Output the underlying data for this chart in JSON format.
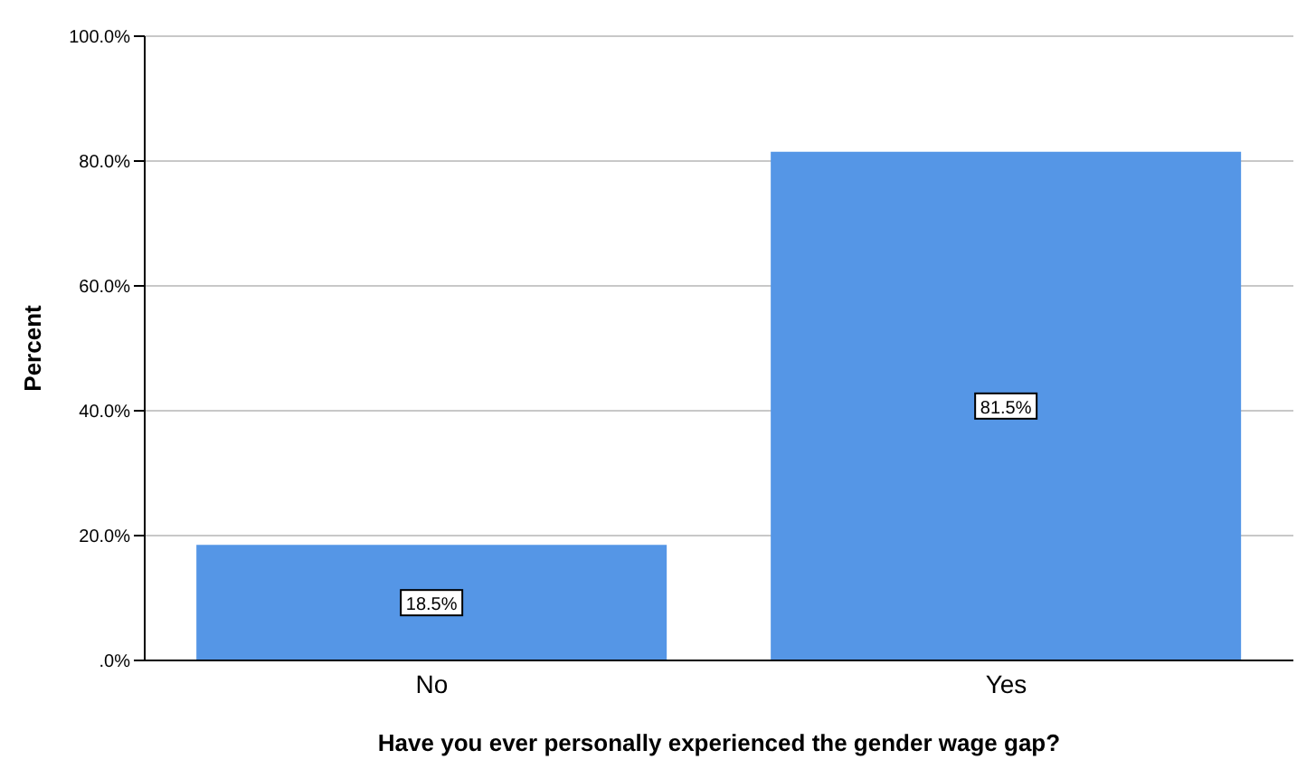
{
  "chart_data": {
    "type": "bar",
    "xlabel": "Have you ever personally experienced the gender wage gap?",
    "ylabel": "Percent",
    "categories": [
      "No",
      "Yes"
    ],
    "values": [
      18.5,
      81.5
    ],
    "color": "#5596e6",
    "value_labels": [
      "18.5%",
      "81.5%"
    ],
    "ylim": [
      0,
      100
    ],
    "yticks": [
      {
        "value": 0,
        "label": ".0%"
      },
      {
        "value": 20,
        "label": "20.0%"
      },
      {
        "value": 40,
        "label": "40.0%"
      },
      {
        "value": 60,
        "label": "60.0%"
      },
      {
        "value": 80,
        "label": "80.0%"
      },
      {
        "value": 100,
        "label": "100.0%"
      }
    ],
    "grid": "y"
  }
}
